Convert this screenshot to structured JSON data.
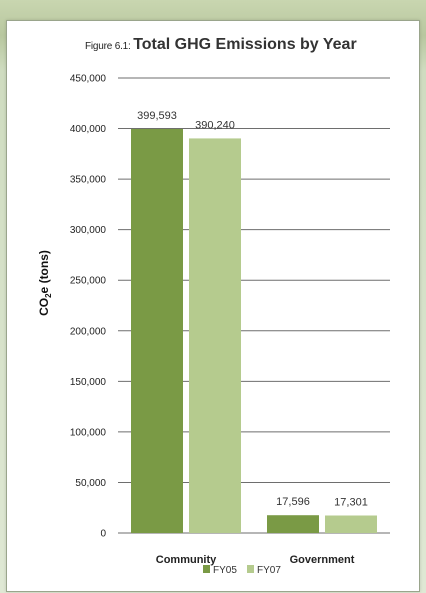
{
  "figure": {
    "prefix": "Figure 6.1: ",
    "title": "Total GHG Emissions by Year"
  },
  "chart_data": {
    "type": "bar",
    "title": "Total GHG Emissions by Year",
    "ylabel": "CO2e (tons)",
    "xlabel": "",
    "categories": [
      "Community",
      "Government"
    ],
    "series": [
      {
        "name": "FY05",
        "values": [
          399593,
          17596
        ],
        "labels": [
          "399,593",
          "17,596"
        ],
        "color": "#7a9a45"
      },
      {
        "name": "FY07",
        "values": [
          390240,
          17301
        ],
        "labels": [
          "390,240",
          "17,301"
        ],
        "color": "#b5cb8e"
      }
    ],
    "ylim": [
      0,
      450000
    ],
    "yticks": [
      0,
      50000,
      100000,
      150000,
      200000,
      250000,
      300000,
      350000,
      400000,
      450000
    ],
    "ytick_labels": [
      "0",
      "50,000",
      "100,000",
      "150,000",
      "200,000",
      "250,000",
      "300,000",
      "350,000",
      "400,000",
      "450,000"
    ],
    "grid": true,
    "legend_position": "bottom"
  },
  "colors": {
    "gridline": "#6e6e6e",
    "background": "#ffffff"
  }
}
